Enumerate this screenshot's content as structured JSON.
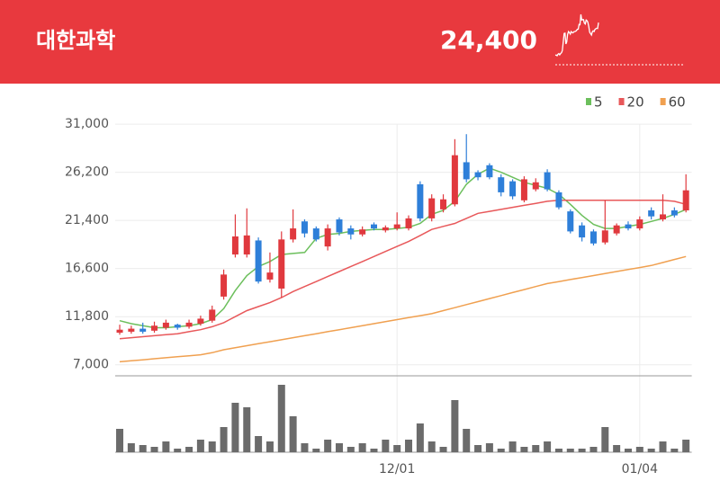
{
  "chart_data": {
    "type": "candlestick",
    "title": "대한과학",
    "last_price": "24,400",
    "categories": [
      null,
      null,
      null,
      null,
      null,
      null,
      null,
      null,
      null,
      null,
      null,
      null,
      null,
      null,
      null,
      null,
      null,
      null,
      null,
      null,
      null,
      null,
      null,
      null,
      "12/01",
      null,
      null,
      null,
      null,
      null,
      null,
      null,
      null,
      null,
      null,
      null,
      null,
      null,
      null,
      null,
      null,
      null,
      null,
      null,
      null,
      "01/04",
      null,
      null,
      null,
      null
    ],
    "ylim": [
      5900,
      32800
    ],
    "yticks": [
      {
        "value": 31000,
        "label": "31,000"
      },
      {
        "value": 26200,
        "label": "26,200"
      },
      {
        "value": 21400,
        "label": "21,400"
      },
      {
        "value": 16600,
        "label": "16,600"
      },
      {
        "value": 11800,
        "label": "11,800"
      },
      {
        "value": 7000,
        "label": "7,000"
      }
    ],
    "grid": true,
    "candles": {
      "up_color": "#e0393e",
      "down_color": "#2e7fd9",
      "open": [
        10200,
        10300,
        10600,
        10400,
        10700,
        11000,
        10800,
        11100,
        11400,
        13800,
        18000,
        18000,
        19400,
        15500,
        14600,
        19500,
        21300,
        20600,
        18800,
        21500,
        20600,
        20000,
        21000,
        20400,
        20600,
        20600,
        25000,
        21600,
        22500,
        23000,
        27200,
        26200,
        26900,
        25700,
        25300,
        23400,
        24500,
        26200,
        24200,
        22300,
        20900,
        20300,
        19200,
        20100,
        21000,
        20600,
        22400,
        21500,
        22400,
        22400
      ],
      "high": [
        11000,
        10900,
        11200,
        11300,
        11500,
        11100,
        11500,
        11900,
        12900,
        16500,
        22000,
        22600,
        19700,
        18200,
        20300,
        22500,
        21500,
        20800,
        21000,
        21700,
        20900,
        20800,
        21200,
        20900,
        22200,
        21900,
        25300,
        24000,
        24000,
        29500,
        30000,
        26400,
        27100,
        26000,
        25500,
        25800,
        25600,
        26500,
        24400,
        22500,
        21200,
        20500,
        23400,
        21100,
        21300,
        21800,
        22700,
        24000,
        22700,
        26000
      ],
      "low": [
        10000,
        10100,
        10100,
        10200,
        10500,
        10500,
        10600,
        10900,
        11200,
        13500,
        17700,
        17700,
        15100,
        15200,
        13700,
        19200,
        19700,
        19300,
        18400,
        19900,
        19500,
        19800,
        20400,
        20200,
        20400,
        20400,
        21300,
        21300,
        22200,
        22800,
        25200,
        25400,
        25500,
        23800,
        23500,
        23200,
        24300,
        24300,
        22500,
        20100,
        19300,
        18900,
        19000,
        19900,
        20400,
        20400,
        21500,
        21300,
        21700,
        22200
      ],
      "close": [
        10500,
        10600,
        10300,
        10900,
        11200,
        10700,
        11200,
        11600,
        12500,
        16000,
        19800,
        19900,
        15300,
        16200,
        19500,
        20600,
        20100,
        19500,
        20600,
        20200,
        20000,
        20500,
        20600,
        20700,
        21000,
        21600,
        21600,
        23600,
        23500,
        27900,
        25500,
        25700,
        25700,
        24200,
        23800,
        25500,
        25200,
        24500,
        22700,
        20300,
        19700,
        19100,
        20400,
        20900,
        20600,
        21500,
        21800,
        22000,
        21900,
        24400
      ]
    },
    "series": [
      {
        "name": "5",
        "color": "#6cbf5c",
        "values": [
          11400,
          11100,
          10900,
          10700,
          10700,
          10800,
          10900,
          11100,
          11500,
          12600,
          14400,
          15900,
          16800,
          17300,
          18000,
          18100,
          18200,
          19600,
          20000,
          20100,
          20300,
          20400,
          20500,
          20500,
          20600,
          20700,
          21100,
          22000,
          22400,
          23300,
          25000,
          26000,
          26600,
          26200,
          25700,
          25200,
          24900,
          24600,
          24000,
          23000,
          21900,
          21000,
          20600,
          20600,
          20800,
          21000,
          21300,
          21600,
          22000,
          22500
        ]
      },
      {
        "name": "20",
        "color": "#e8585a",
        "values": [
          9600,
          9700,
          9800,
          9900,
          10000,
          10100,
          10300,
          10500,
          10800,
          11200,
          11800,
          12400,
          12800,
          13200,
          13700,
          14300,
          14800,
          15300,
          15800,
          16300,
          16800,
          17300,
          17800,
          18300,
          18800,
          19300,
          19900,
          20500,
          20800,
          21100,
          21600,
          22100,
          22300,
          22500,
          22700,
          22900,
          23100,
          23300,
          23400,
          23400,
          23400,
          23400,
          23400,
          23400,
          23400,
          23400,
          23400,
          23400,
          23300,
          23000
        ]
      },
      {
        "name": "60",
        "color": "#f0a050",
        "values": [
          7300,
          7400,
          7500,
          7600,
          7700,
          7800,
          7900,
          8000,
          8200,
          8500,
          8700,
          8900,
          9100,
          9300,
          9500,
          9700,
          9900,
          10100,
          10300,
          10500,
          10700,
          10900,
          11100,
          11300,
          11500,
          11700,
          11900,
          12100,
          12400,
          12700,
          13000,
          13300,
          13600,
          13900,
          14200,
          14500,
          14800,
          15100,
          15300,
          15500,
          15700,
          15900,
          16100,
          16300,
          16500,
          16700,
          16900,
          17200,
          17500,
          17800
        ]
      }
    ],
    "volume": {
      "color": "#6b6b6b",
      "ylim": [
        0,
        80
      ],
      "values": [
        26,
        10,
        8,
        6,
        12,
        4,
        6,
        14,
        12,
        28,
        55,
        50,
        18,
        12,
        75,
        40,
        10,
        4,
        14,
        10,
        6,
        10,
        4,
        14,
        8,
        14,
        32,
        12,
        6,
        58,
        26,
        8,
        10,
        4,
        12,
        6,
        8,
        12,
        4,
        4,
        4,
        6,
        28,
        8,
        4,
        6,
        4,
        12,
        4,
        14
      ]
    }
  }
}
